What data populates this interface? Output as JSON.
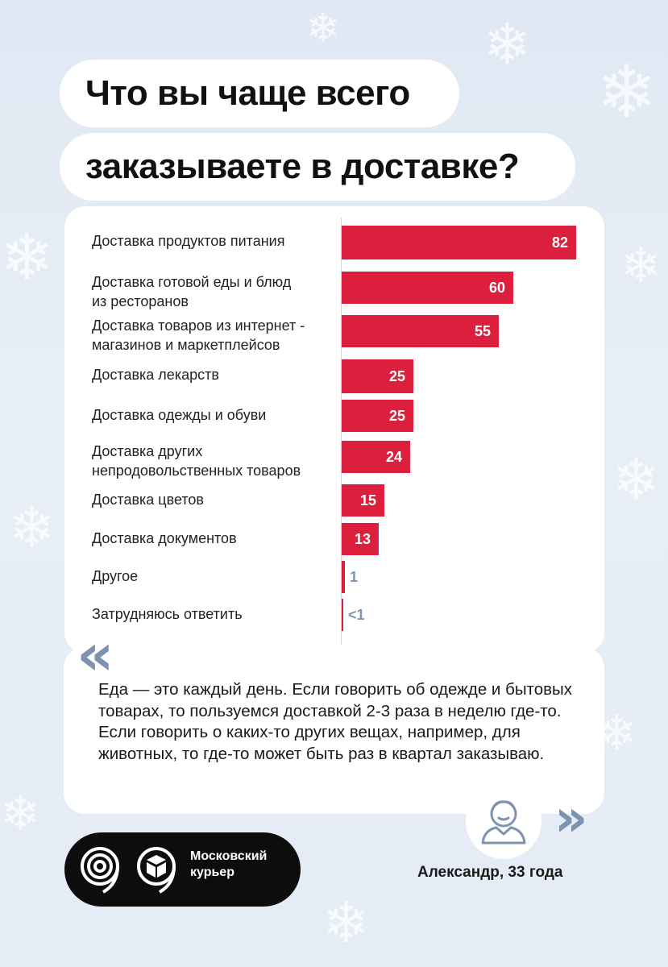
{
  "title": {
    "line1": "Что вы чаще всего",
    "line2": "заказываете в доставке?"
  },
  "chart_data": {
    "type": "bar",
    "orientation": "horizontal",
    "categories": [
      "Доставка продуктов питания",
      "Доставка готовой еды и блюд\nиз ресторанов",
      "Доставка товаров из интернет -\nмагазинов и маркетплейсов",
      "Доставка лекарств",
      "Доставка одежды и обуви",
      "Доставка других\nнепродовольственных товаров",
      "Доставка цветов",
      "Доставка документов",
      "Другое",
      "Затрудняюсь ответить"
    ],
    "values": [
      82,
      60,
      55,
      25,
      25,
      24,
      15,
      13,
      1,
      0.5
    ],
    "value_labels": [
      "82",
      "60",
      "55",
      "25",
      "25",
      "24",
      "15",
      "13",
      "1",
      "<1"
    ],
    "xlim": [
      0,
      82
    ],
    "bar_color": "#dc1f3c",
    "small_label_color": "#7e94b0"
  },
  "quote": {
    "text": "Еда — это каждый день. Если говорить об одежде и бытовых товарах, то пользуемся доставкой 2-3 раза в неделю где-то. Если говорить о каких-то других вещах, например, для животных, то где-то может быть раз в квартал заказываю.",
    "open_mark": "«",
    "close_mark": "»",
    "author": "Александр, 33 года",
    "avatar_icon": "person-icon"
  },
  "logo": {
    "text_line1": "Московский",
    "text_line2": "курьер",
    "icons": [
      "moscow-nine-icon",
      "courier-box-icon"
    ]
  },
  "colors": {
    "background": "#e3eaf4",
    "accent": "#dc1f3c",
    "quote_marks": "#7d93b2",
    "logo_bg": "#0d0d0d"
  }
}
